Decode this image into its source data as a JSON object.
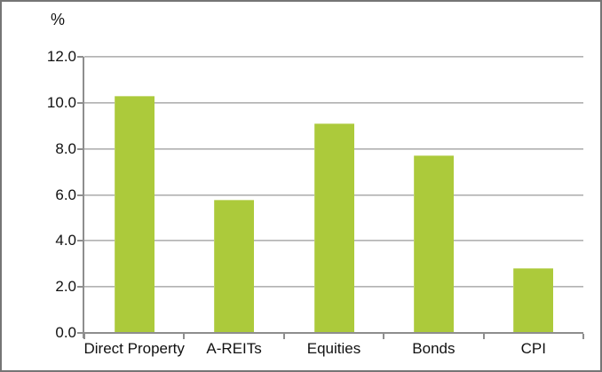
{
  "chart_data": {
    "type": "bar",
    "title": "",
    "xlabel": "",
    "ylabel": "%",
    "categories": [
      "Direct Property",
      "A-REITs",
      "Equities",
      "Bonds",
      "CPI"
    ],
    "values": [
      10.3,
      5.8,
      9.1,
      7.7,
      2.8
    ],
    "ylim": [
      0,
      12
    ],
    "ytick_step": 2,
    "ytick_labels": [
      "0.0",
      "2.0",
      "4.0",
      "6.0",
      "8.0",
      "10.0",
      "12.0"
    ],
    "grid": "horizontal",
    "legend_position": "none",
    "colors": {
      "bar_fill": "#ACCA3B",
      "gridline": "#a6a6a6",
      "axis": "#8e8e8e",
      "frame_border": "#767676",
      "text": "#111111",
      "background": "#ffffff"
    }
  }
}
